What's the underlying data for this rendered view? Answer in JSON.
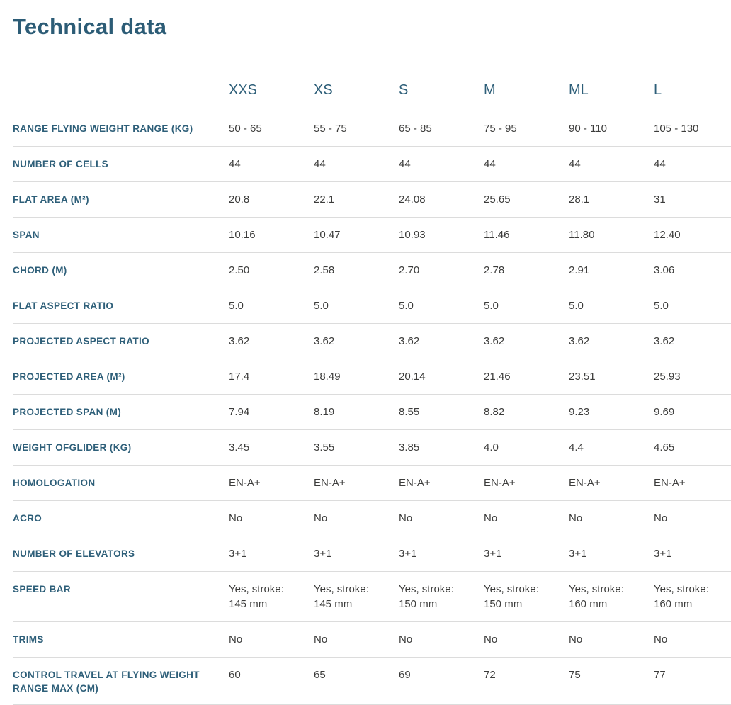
{
  "page": {
    "title": "Technical data"
  },
  "colors": {
    "accent_teal": "#2c5c76",
    "header_teal": "#2e5f79",
    "value_text": "#3c3c3b",
    "divider": "#dcdcdc",
    "background": "#ffffff"
  },
  "table": {
    "columns": [
      "XXS",
      "XS",
      "S",
      "M",
      "ML",
      "L"
    ],
    "rows": [
      {
        "label": "RANGE FLYING WEIGHT RANGE (KG)",
        "values": [
          "50 - 65",
          "55 - 75",
          "65 - 85",
          "75 - 95",
          "90 - 110",
          "105 - 130"
        ]
      },
      {
        "label": "NUMBER OF CELLS",
        "values": [
          "44",
          "44",
          "44",
          "44",
          "44",
          "44"
        ]
      },
      {
        "label": "FLAT AREA (M²)",
        "values": [
          "20.8",
          "22.1",
          "24.08",
          "25.65",
          "28.1",
          "31"
        ]
      },
      {
        "label": "SPAN",
        "values": [
          "10.16",
          "10.47",
          "10.93",
          "11.46",
          "11.80",
          "12.40"
        ]
      },
      {
        "label": "CHORD (M)",
        "values": [
          "2.50",
          "2.58",
          "2.70",
          "2.78",
          "2.91",
          "3.06"
        ]
      },
      {
        "label": "FLAT ASPECT RATIO",
        "values": [
          "5.0",
          "5.0",
          "5.0",
          "5.0",
          "5.0",
          "5.0"
        ]
      },
      {
        "label": "PROJECTED ASPECT RATIO",
        "values": [
          "3.62",
          "3.62",
          "3.62",
          "3.62",
          "3.62",
          "3.62"
        ]
      },
      {
        "label": "PROJECTED AREA (M²)",
        "values": [
          "17.4",
          "18.49",
          "20.14",
          "21.46",
          "23.51",
          "25.93"
        ]
      },
      {
        "label": "PROJECTED SPAN (M)",
        "values": [
          "7.94",
          "8.19",
          "8.55",
          "8.82",
          "9.23",
          "9.69"
        ]
      },
      {
        "label": "WEIGHT OFGLIDER (KG)",
        "values": [
          "3.45",
          "3.55",
          "3.85",
          "4.0",
          "4.4",
          "4.65"
        ]
      },
      {
        "label": "HOMOLOGATION",
        "values": [
          "EN-A+",
          "EN-A+",
          "EN-A+",
          "EN-A+",
          "EN-A+",
          "EN-A+"
        ]
      },
      {
        "label": "ACRO",
        "values": [
          "No",
          "No",
          "No",
          "No",
          "No",
          "No"
        ]
      },
      {
        "label": "NUMBER OF ELEVATORS",
        "values": [
          "3+1",
          "3+1",
          "3+1",
          "3+1",
          "3+1",
          "3+1"
        ]
      },
      {
        "label": "SPEED BAR",
        "values": [
          "Yes, stroke: 145 mm",
          "Yes, stroke: 145 mm",
          "Yes, stroke: 150 mm",
          "Yes, stroke: 150 mm",
          "Yes, stroke: 160 mm",
          "Yes, stroke: 160 mm"
        ]
      },
      {
        "label": "TRIMS",
        "values": [
          "No",
          "No",
          "No",
          "No",
          "No",
          "No"
        ]
      },
      {
        "label": "CONTROL TRAVEL AT FLYING WEIGHT RANGE MAX (CM)",
        "values": [
          "60",
          "65",
          "69",
          "72",
          "75",
          "77"
        ]
      }
    ]
  }
}
